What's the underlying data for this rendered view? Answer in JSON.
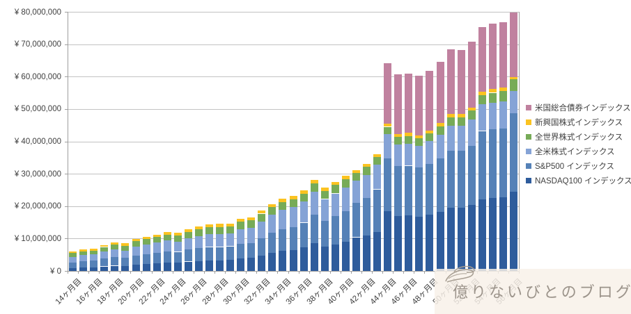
{
  "watermark": {
    "text": "億りないびとのブログ",
    "background": "#f8f1e8",
    "text_color": "#9c948b"
  },
  "chart_data": {
    "type": "bar",
    "stacked": true,
    "title": "",
    "xlabel": "",
    "ylabel": "",
    "ylim": [
      0,
      80000000
    ],
    "ytick_step": 10000000,
    "grid": true,
    "legend_position": "right",
    "x_label_every": 2,
    "y_tick_labels": [
      "¥ 0",
      "¥ 10,000,000",
      "¥ 20,000,000",
      "¥ 30,000,000",
      "¥ 40,000,000",
      "¥ 50,000,000",
      "¥ 60,000,000",
      "¥ 70,000,000",
      "¥ 80,000,000"
    ],
    "categories": [
      "14ヶ月目",
      "15ヶ月目",
      "16ヶ月目",
      "17ヶ月目",
      "18ヶ月目",
      "19ヶ月目",
      "20ヶ月目",
      "21ヶ月目",
      "22ヶ月目",
      "23ヶ月目",
      "24ヶ月目",
      "25ヶ月目",
      "26ヶ月目",
      "27ヶ月目",
      "28ヶ月目",
      "29ヶ月目",
      "30ヶ月目",
      "31ヶ月目",
      "32ヶ月目",
      "33ヶ月目",
      "34ヶ月目",
      "35ヶ月目",
      "36ヶ月目",
      "37ヶ月目",
      "38ヶ月目",
      "39ヶ月目",
      "40ヶ月目",
      "41ヶ月目",
      "42ヶ月目",
      "43ヶ月目",
      "44ヶ月目",
      "45ヶ月目",
      "46ヶ月目",
      "47ヶ月目",
      "48ヶ月目",
      "49ヶ月目",
      "50ヶ月目",
      "51ヶ月目",
      "52ヶ月目",
      "53ヶ月目",
      "54ヶ月目",
      "55ヶ月目",
      "56ヶ月目"
    ],
    "stack_order": "bottom-to-top",
    "series": [
      {
        "key": "nasdaq100",
        "name": "NASDAQ100 インデックス",
        "color": "#2e5c9c",
        "values": [
          800000,
          1000000,
          1100000,
          1400000,
          1600000,
          1500000,
          1900000,
          2100000,
          2300000,
          2600000,
          2500000,
          2900000,
          3100000,
          3300000,
          3300000,
          3400000,
          3900000,
          4000000,
          4800000,
          5600000,
          6200000,
          6500000,
          7200000,
          8500000,
          7500000,
          8200000,
          9000000,
          10400000,
          10900000,
          12000000,
          18400000,
          17000000,
          17100000,
          16800000,
          17400000,
          18300000,
          19600000,
          19500000,
          20400000,
          22100000,
          22500000,
          22700000,
          24400000
        ]
      },
      {
        "key": "sp500",
        "name": "S&P500 インデックス",
        "color": "#5581b7",
        "values": [
          1800000,
          2000000,
          2100000,
          2400000,
          2600000,
          2500000,
          2900000,
          3100000,
          3300000,
          3500000,
          3400000,
          3700000,
          3900000,
          4100000,
          4100000,
          4200000,
          4400000,
          4600000,
          5300000,
          6100000,
          6700000,
          7000000,
          7700000,
          8900000,
          8000000,
          8700000,
          9500000,
          10700000,
          11600000,
          13200000,
          16400000,
          15300000,
          15400000,
          15100000,
          15700000,
          16500000,
          17600000,
          17600000,
          18300000,
          21100000,
          21200000,
          21300000,
          24300000
        ]
      },
      {
        "key": "zenbei",
        "name": "全米株式インデックス",
        "color": "#85a3d6",
        "values": [
          1700000,
          1900000,
          1900000,
          2200000,
          2400000,
          2300000,
          2700000,
          2900000,
          3100000,
          3300000,
          3200000,
          3500000,
          3700000,
          3900000,
          3900000,
          4000000,
          4600000,
          4700000,
          5200000,
          5600000,
          6000000,
          6200000,
          6500000,
          7100000,
          6700000,
          7000000,
          7300000,
          6800000,
          7100000,
          7600000,
          7400000,
          6800000,
          6800000,
          6700000,
          7000000,
          7300000,
          7700000,
          7700000,
          8000000,
          8200000,
          8200000,
          8300000,
          6900000
        ]
      },
      {
        "key": "zensekai",
        "name": "全世界株式インデックス",
        "color": "#77ab58",
        "values": [
          1200000,
          1200000,
          1200000,
          1400000,
          1500000,
          1500000,
          1700000,
          1700000,
          1800000,
          1800000,
          1800000,
          2000000,
          2100000,
          2200000,
          2300000,
          2200000,
          2300000,
          2300000,
          2400000,
          2400000,
          2400000,
          2400000,
          2500000,
          2600000,
          2500000,
          2600000,
          2600000,
          2300000,
          2500000,
          2300000,
          2300000,
          2300000,
          2400000,
          2300000,
          2400000,
          2500000,
          2600000,
          2700000,
          2800000,
          2900000,
          3100000,
          3300000,
          3600000
        ]
      },
      {
        "key": "shinkoukoku",
        "name": "新興国株式インデックス",
        "color": "#fbc321",
        "values": [
          500000,
          600000,
          600000,
          600000,
          700000,
          700000,
          700000,
          700000,
          700000,
          800000,
          800000,
          800000,
          900000,
          900000,
          900000,
          900000,
          900000,
          1000000,
          1000000,
          1000000,
          1000000,
          1000000,
          1000000,
          1000000,
          1000000,
          1000000,
          1000000,
          1000000,
          1000000,
          1000000,
          900000,
          900000,
          900000,
          900000,
          900000,
          1000000,
          1000000,
          1000000,
          1000000,
          1000000,
          1100000,
          1000000,
          600000
        ]
      },
      {
        "key": "saiken",
        "name": "米国総合債券インデックス",
        "color": "#c0819f",
        "values": [
          0,
          0,
          0,
          0,
          0,
          0,
          0,
          0,
          0,
          0,
          0,
          0,
          0,
          0,
          0,
          0,
          0,
          0,
          0,
          0,
          0,
          0,
          0,
          0,
          0,
          0,
          0,
          0,
          0,
          0,
          18700000,
          18500000,
          18400000,
          18400000,
          18400000,
          18900000,
          19900000,
          19700000,
          20200000,
          19900000,
          20200000,
          20100000,
          20000000
        ]
      }
    ]
  }
}
